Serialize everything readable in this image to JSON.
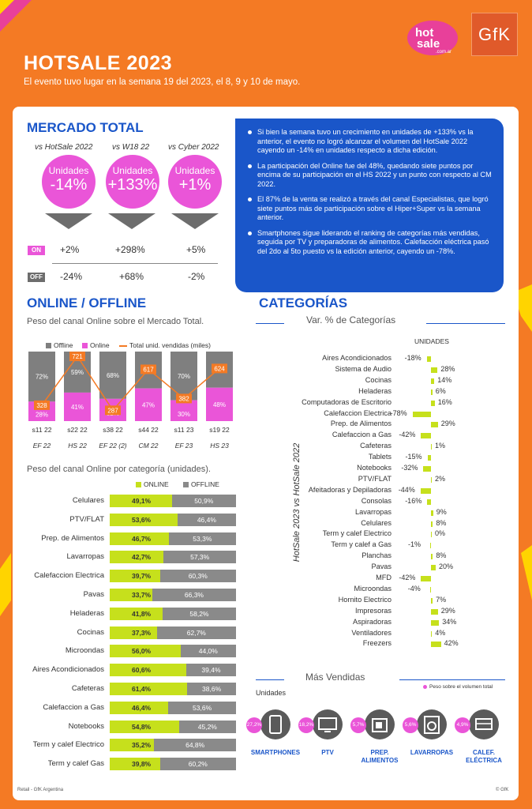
{
  "header": {
    "title": "HOTSALE 2023",
    "subtitle": "El evento tuvo lugar en la semana 19 del 2023, el 8, 9 y 10 de mayo.",
    "logo_hot": "hot",
    "logo_sale": "sale",
    "logo_domain": ".com.ar",
    "logo_gfk": "GfK"
  },
  "mercado": {
    "title": "MERCADO TOTAL",
    "columns": [
      {
        "label": "vs HotSale 2022",
        "bubble_unit": "Unidades",
        "bubble_value": "-14%",
        "on": "+2%",
        "off": "-24%"
      },
      {
        "label": "vs W18 22",
        "bubble_unit": "Unidades",
        "bubble_value": "+133%",
        "on": "+298%",
        "off": "+68%"
      },
      {
        "label": "vs Cyber 2022",
        "bubble_unit": "Unidades",
        "bubble_value": "+1%",
        "on": "+5%",
        "off": "-2%"
      }
    ],
    "on_label": "ON",
    "off_label": "OFF",
    "on_color": "#ea55d8",
    "off_color": "#6d6d6d"
  },
  "bullets": [
    "Si bien la semana tuvo un crecimiento en unidades de +133% vs la anterior, el evento no logró alcanzar el volumen del HotSale 2022 cayendo un -14% en unidades respecto a dicha edición.",
    "La participación del Online fue del 48%, quedando siete puntos por encima de su participación en el HS 2022 y un punto con respecto al CM 2022.",
    "El 87% de la venta se realizó a través del canal Especialistas, que logró siete puntos más de participación sobre el Hiper+Super vs la semana anterior.",
    "Smartphones sigue liderando el ranking de categorías más vendidas, seguida por TV y preparadoras de alimentos. Calefacción eléctrica pasó del 2do al 5to puesto vs la edición anterior, cayendo un -78%."
  ],
  "online_offline": {
    "title": "ONLINE / OFFLINE",
    "subtitle": "Peso del canal Online sobre el Mercado Total.",
    "cat_subtitle": "Peso del canal Online por categoría (unidades)."
  },
  "chart_data": [
    {
      "type": "bar",
      "stacked": true,
      "legend": [
        "Offline",
        "Online",
        "Total unid. vendidas (miles)"
      ],
      "categories": [
        "s11 22",
        "s22 22",
        "s38 22",
        "s44 22",
        "s11 23",
        "s19 22"
      ],
      "events": [
        "EF 22",
        "HS 22",
        "EF 22 (2)",
        "CM 22",
        "EF 23",
        "HS 23"
      ],
      "series": [
        {
          "name": "Online",
          "values": [
            28,
            41,
            32,
            47,
            30,
            48
          ]
        },
        {
          "name": "Offline",
          "values": [
            72,
            59,
            68,
            53,
            70,
            52
          ]
        }
      ],
      "line": {
        "name": "Total unid. vendidas (miles)",
        "values": [
          328,
          721,
          287,
          617,
          382,
          624
        ]
      },
      "ylim": [
        0,
        100
      ],
      "colors": {
        "online": "#ea55d8",
        "offline": "#7f7f7f",
        "line": "#f47a24"
      }
    },
    {
      "type": "bar",
      "stacked": true,
      "orientation": "horizontal",
      "legend": [
        "ONLINE",
        "OFFLINE"
      ],
      "categories": [
        "Celulares",
        "PTV/FLAT",
        "Prep. de Alimentos",
        "Lavarropas",
        "Calefaccion Electrica",
        "Pavas",
        "Heladeras",
        "Cocinas",
        "Microondas",
        "Aires Acondicionados",
        "Cafeteras",
        "Calefaccion a Gas",
        "Notebooks",
        "Term y calef Electrico",
        "Term y calef Gas"
      ],
      "series": [
        {
          "name": "ONLINE",
          "labels": [
            "49,1%",
            "53,6%",
            "46,7%",
            "42,7%",
            "39,7%",
            "33,7%",
            "41,8%",
            "37,3%",
            "56,0%",
            "60,6%",
            "61,4%",
            "46,4%",
            "54,8%",
            "35,2%",
            "39,8%"
          ],
          "values": [
            49.1,
            53.6,
            46.7,
            42.7,
            39.7,
            33.7,
            41.8,
            37.3,
            56.0,
            60.6,
            61.4,
            46.4,
            54.8,
            35.2,
            39.8
          ]
        },
        {
          "name": "OFFLINE",
          "labels": [
            "50,9%",
            "46,4%",
            "53,3%",
            "57,3%",
            "60,3%",
            "66,3%",
            "58,2%",
            "62,7%",
            "44,0%",
            "39,4%",
            "38,6%",
            "53,6%",
            "45,2%",
            "64,8%",
            "60,2%"
          ],
          "values": [
            50.9,
            46.4,
            53.3,
            57.3,
            60.3,
            66.3,
            58.2,
            62.7,
            44.0,
            39.4,
            38.6,
            53.6,
            45.2,
            64.8,
            60.2
          ]
        }
      ],
      "colors": {
        "online": "#c6e01c",
        "offline": "#8a8a8a"
      }
    },
    {
      "type": "bar",
      "orientation": "horizontal",
      "title": "Var. % de Categorías",
      "header": "UNIDADES",
      "ylabel": "HotSale 2023 vs HotSale 2022",
      "categories": [
        "Aires Acondicionados",
        "Sistema de Audio",
        "Cocinas",
        "Heladeras",
        "Computadoras de Escritorio",
        "Calefaccion Electrica",
        "Prep. de Alimentos",
        "Calefaccion a Gas",
        "Cafeteras",
        "Tablets",
        "Notebooks",
        "PTV/FLAT",
        "Afeitadoras y Depiladoras",
        "Consolas",
        "Lavarropas",
        "Celulares",
        "Term y calef Electrico",
        "Term y calef a Gas",
        "Planchas",
        "Pavas",
        "MFD",
        "Microondas",
        "Hornito Electrico",
        "Impresoras",
        "Aspiradoras",
        "Ventiladores",
        "Freezers"
      ],
      "labels": [
        "-18%",
        "28%",
        "14%",
        "6%",
        "16%",
        "-78%",
        "29%",
        "-42%",
        "1%",
        "-15%",
        "-32%",
        "2%",
        "-44%",
        "-16%",
        "9%",
        "8%",
        "0%",
        "-1%",
        "8%",
        "20%",
        "-42%",
        "-4%",
        "7%",
        "29%",
        "34%",
        "4%",
        "42%"
      ],
      "values": [
        -18,
        28,
        14,
        6,
        16,
        -78,
        29,
        -42,
        1,
        -15,
        -32,
        2,
        -44,
        -16,
        9,
        8,
        0,
        -1,
        8,
        20,
        -42,
        -4,
        7,
        29,
        34,
        4,
        42
      ],
      "color": "#c6e01c"
    }
  ],
  "categorias": {
    "title": "CATEGORÍAS",
    "var_title": "Var. % de Categorías",
    "unidades_header": "UNIDADES",
    "axis_label": "HotSale 2023 vs HotSale 2022"
  },
  "mas_vendidas": {
    "title": "Más Vendidas",
    "unit": "Unidades",
    "legend": "Peso sobre el volumen total",
    "items": [
      {
        "name": "SMARTPHONES",
        "share": "27,2%",
        "icon": "smartphone-icon"
      },
      {
        "name": "PTV",
        "share": "18,2%",
        "icon": "tv-icon"
      },
      {
        "name": "PREP. ALIMENTOS",
        "share": "5,7%",
        "icon": "food-processor-icon"
      },
      {
        "name": "LAVARROPAS",
        "share": "5,6%",
        "icon": "washing-machine-icon"
      },
      {
        "name": "CALEF. ELÉCTRICA",
        "share": "4,9%",
        "icon": "heater-icon"
      }
    ]
  },
  "footer": {
    "left": "Retail - GfK Argentina",
    "right": "© GfK"
  }
}
